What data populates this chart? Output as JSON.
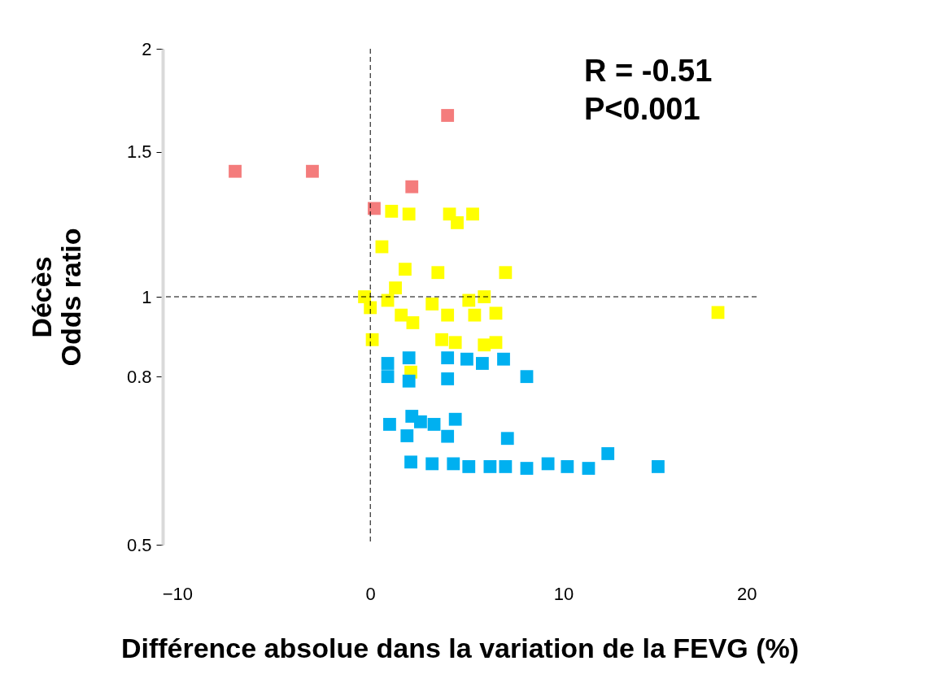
{
  "chart_data": {
    "type": "scatter",
    "xlabel": "Différence absolue dans la variation de la FEVG (%)",
    "ylabel": "Décès\nOdds ratio",
    "log": "y",
    "xlim": [
      -10.75,
      20
    ],
    "xticks": [
      -10,
      0,
      10,
      20
    ],
    "ylim": [
      0.5,
      2
    ],
    "yticks": [
      0.5,
      0.8,
      1,
      1.5,
      2
    ],
    "grid": false,
    "legend": false,
    "marker": "square",
    "ref_lines": [
      {
        "axis": "x",
        "value": 0,
        "line_style": "dashed",
        "color": "#000000"
      },
      {
        "axis": "y",
        "value": 1,
        "line_style": "dashed",
        "color": "#000000"
      }
    ],
    "annotations": [
      "R = -0.51",
      "P<0.001"
    ],
    "series": [
      {
        "color": "#f47c7c",
        "x": [
          -7.0,
          -3.0,
          4.0,
          2.15,
          0.2
        ],
        "values": [
          1.42,
          1.42,
          1.66,
          1.36,
          1.28
        ]
      },
      {
        "color": "#ffff00",
        "x": [
          1.1,
          2.0,
          4.1,
          5.3,
          4.5,
          0.6,
          1.8,
          3.5,
          7.0,
          1.3,
          -0.3,
          0.9,
          0.0,
          1.6,
          3.2,
          5.1,
          5.9,
          4.0,
          5.4,
          6.5,
          2.2,
          18.0,
          0.1,
          3.7,
          4.4,
          5.9,
          6.5,
          2.1
        ],
        "values": [
          1.27,
          1.26,
          1.26,
          1.26,
          1.23,
          1.15,
          1.08,
          1.07,
          1.07,
          1.025,
          1.0,
          0.99,
          0.97,
          0.95,
          0.98,
          0.99,
          1.0,
          0.95,
          0.95,
          0.955,
          0.93,
          0.957,
          0.887,
          0.887,
          0.88,
          0.874,
          0.88,
          0.81
        ]
      },
      {
        "color": "#00b0f0",
        "x": [
          0.9,
          0.9,
          2.0,
          2.0,
          4.0,
          5.0,
          5.8,
          6.9,
          4.0,
          8.1,
          1.0,
          2.15,
          2.6,
          3.3,
          4.4,
          1.9,
          4.0,
          7.1,
          2.1,
          3.2,
          4.3,
          5.1,
          6.2,
          7.0,
          8.1,
          9.2,
          10.2,
          11.3,
          12.3,
          14.9
        ],
        "values": [
          0.83,
          0.8,
          0.843,
          0.79,
          0.843,
          0.84,
          0.83,
          0.84,
          0.795,
          0.8,
          0.7,
          0.716,
          0.705,
          0.7,
          0.71,
          0.678,
          0.677,
          0.673,
          0.63,
          0.627,
          0.627,
          0.622,
          0.622,
          0.622,
          0.619,
          0.627,
          0.622,
          0.619,
          0.645,
          0.622
        ]
      }
    ]
  }
}
